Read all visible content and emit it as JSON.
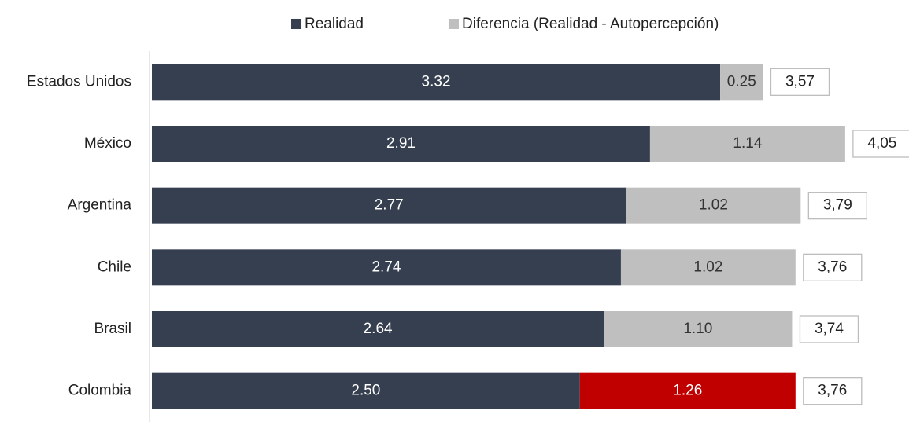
{
  "chart_data": {
    "type": "stacked-bar",
    "orientation": "horizontal",
    "categories": [
      "Estados Unidos",
      "México",
      "Argentina",
      "Chile",
      "Brasil",
      "Colombia"
    ],
    "series": [
      {
        "name": "Realidad",
        "color": "#353f50",
        "values": [
          3.32,
          2.91,
          2.77,
          2.74,
          2.64,
          2.5
        ],
        "value_labels": [
          "3.32",
          "2.91",
          "2.77",
          "2.74",
          "2.64",
          "2.50"
        ]
      },
      {
        "name": "Diferencia (Realidad - Autopercepción)",
        "color": "#bfbfbf",
        "colors": [
          "#bfbfbf",
          "#bfbfbf",
          "#bfbfbf",
          "#bfbfbf",
          "#bfbfbf",
          "#c00000"
        ],
        "values": [
          0.25,
          1.14,
          1.02,
          1.02,
          1.1,
          1.26
        ],
        "value_labels": [
          "0.25",
          "1.14",
          "1.02",
          "1.02",
          "1.10",
          "1.26"
        ]
      }
    ],
    "totals": [
      3.57,
      4.05,
      3.79,
      3.76,
      3.74,
      3.76
    ],
    "total_labels": [
      "3,57",
      "4,05",
      "3,79",
      "3,76",
      "3,74",
      "3,76"
    ],
    "xlim": [
      0,
      4.4
    ],
    "legend": "top"
  }
}
